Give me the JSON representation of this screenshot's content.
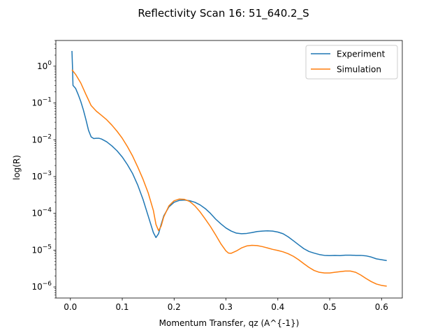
{
  "chart_data": {
    "type": "line",
    "title": "Reflectivity Scan 16: 51_640.2_S",
    "xlabel": "Momentum Transfer, qz (A^{-1})",
    "ylabel": "log(R)",
    "y_scale": "log",
    "xlim": [
      -0.028,
      0.64
    ],
    "ylim": [
      5e-07,
      5
    ],
    "xticks": [
      0.0,
      0.1,
      0.2,
      0.3,
      0.4,
      0.5,
      0.6
    ],
    "xtick_labels": [
      "0.0",
      "0.1",
      "0.2",
      "0.3",
      "0.4",
      "0.5",
      "0.6"
    ],
    "yticks": [
      1,
      0.1,
      0.01,
      0.001,
      0.0001,
      1e-05,
      1e-06
    ],
    "ytick_labels": [
      {
        "base": "10",
        "exp": "0"
      },
      {
        "base": "10",
        "exp": "−1"
      },
      {
        "base": "10",
        "exp": "−2"
      },
      {
        "base": "10",
        "exp": "−3"
      },
      {
        "base": "10",
        "exp": "−4"
      },
      {
        "base": "10",
        "exp": "−5"
      },
      {
        "base": "10",
        "exp": "−6"
      }
    ],
    "grid": false,
    "legend_position": "upper right",
    "series": [
      {
        "name": "Experiment",
        "color": "#1f77b4",
        "points": [
          [
            0.003,
            2.6
          ],
          [
            0.004,
            1.0
          ],
          [
            0.005,
            0.3
          ],
          [
            0.01,
            0.25
          ],
          [
            0.015,
            0.17
          ],
          [
            0.02,
            0.11
          ],
          [
            0.025,
            0.065
          ],
          [
            0.03,
            0.035
          ],
          [
            0.035,
            0.018
          ],
          [
            0.04,
            0.012
          ],
          [
            0.045,
            0.0108
          ],
          [
            0.05,
            0.011
          ],
          [
            0.055,
            0.011
          ],
          [
            0.06,
            0.0105
          ],
          [
            0.07,
            0.0088
          ],
          [
            0.08,
            0.0068
          ],
          [
            0.09,
            0.005
          ],
          [
            0.1,
            0.0034
          ],
          [
            0.11,
            0.0021
          ],
          [
            0.12,
            0.0012
          ],
          [
            0.13,
            0.00058
          ],
          [
            0.14,
            0.00024
          ],
          [
            0.15,
            8.5e-05
          ],
          [
            0.16,
            3e-05
          ],
          [
            0.165,
            2.2e-05
          ],
          [
            0.17,
            2.8e-05
          ],
          [
            0.175,
            5e-05
          ],
          [
            0.18,
            8.5e-05
          ],
          [
            0.19,
            0.00015
          ],
          [
            0.2,
            0.0002
          ],
          [
            0.21,
            0.000225
          ],
          [
            0.22,
            0.00023
          ],
          [
            0.23,
            0.00022
          ],
          [
            0.24,
            0.0002
          ],
          [
            0.25,
            0.00017
          ],
          [
            0.26,
            0.000135
          ],
          [
            0.27,
            0.0001
          ],
          [
            0.28,
            7e-05
          ],
          [
            0.29,
            5.2e-05
          ],
          [
            0.3,
            4e-05
          ],
          [
            0.31,
            3.3e-05
          ],
          [
            0.32,
            2.9e-05
          ],
          [
            0.33,
            2.8e-05
          ],
          [
            0.34,
            2.85e-05
          ],
          [
            0.35,
            3e-05
          ],
          [
            0.36,
            3.2e-05
          ],
          [
            0.37,
            3.3e-05
          ],
          [
            0.38,
            3.35e-05
          ],
          [
            0.39,
            3.3e-05
          ],
          [
            0.4,
            3.1e-05
          ],
          [
            0.41,
            2.8e-05
          ],
          [
            0.42,
            2.3e-05
          ],
          [
            0.43,
            1.8e-05
          ],
          [
            0.44,
            1.4e-05
          ],
          [
            0.45,
            1.1e-05
          ],
          [
            0.46,
            9.2e-06
          ],
          [
            0.47,
            8.3e-06
          ],
          [
            0.48,
            7.6e-06
          ],
          [
            0.49,
            7.2e-06
          ],
          [
            0.5,
            7.1e-06
          ],
          [
            0.51,
            7.2e-06
          ],
          [
            0.52,
            7.1e-06
          ],
          [
            0.53,
            7.3e-06
          ],
          [
            0.54,
            7.3e-06
          ],
          [
            0.55,
            7.2e-06
          ],
          [
            0.56,
            7.2e-06
          ],
          [
            0.57,
            7e-06
          ],
          [
            0.58,
            6.5e-06
          ],
          [
            0.59,
            5.8e-06
          ],
          [
            0.6,
            5.5e-06
          ],
          [
            0.61,
            5.2e-06
          ]
        ]
      },
      {
        "name": "Simulation",
        "color": "#ff7f0e",
        "points": [
          [
            0.003,
            0.8
          ],
          [
            0.01,
            0.6
          ],
          [
            0.02,
            0.35
          ],
          [
            0.03,
            0.17
          ],
          [
            0.04,
            0.085
          ],
          [
            0.05,
            0.06
          ],
          [
            0.06,
            0.046
          ],
          [
            0.07,
            0.035
          ],
          [
            0.08,
            0.025
          ],
          [
            0.09,
            0.017
          ],
          [
            0.1,
            0.011
          ],
          [
            0.11,
            0.0065
          ],
          [
            0.12,
            0.0036
          ],
          [
            0.13,
            0.0018
          ],
          [
            0.14,
            0.00085
          ],
          [
            0.15,
            0.00036
          ],
          [
            0.16,
            0.00012
          ],
          [
            0.165,
            5e-05
          ],
          [
            0.17,
            3.4e-05
          ],
          [
            0.175,
            4.5e-05
          ],
          [
            0.18,
            8e-05
          ],
          [
            0.19,
            0.00016
          ],
          [
            0.2,
            0.00022
          ],
          [
            0.21,
            0.000245
          ],
          [
            0.22,
            0.00024
          ],
          [
            0.23,
            0.00021
          ],
          [
            0.24,
            0.00016
          ],
          [
            0.25,
            0.00011
          ],
          [
            0.26,
            7e-05
          ],
          [
            0.27,
            4.4e-05
          ],
          [
            0.28,
            2.6e-05
          ],
          [
            0.29,
            1.5e-05
          ],
          [
            0.3,
            9.5e-06
          ],
          [
            0.305,
            8.3e-06
          ],
          [
            0.31,
            8.2e-06
          ],
          [
            0.32,
            9.5e-06
          ],
          [
            0.33,
            1.15e-05
          ],
          [
            0.34,
            1.3e-05
          ],
          [
            0.35,
            1.35e-05
          ],
          [
            0.36,
            1.33e-05
          ],
          [
            0.37,
            1.25e-05
          ],
          [
            0.38,
            1.15e-05
          ],
          [
            0.39,
            1.05e-05
          ],
          [
            0.4,
            9.8e-06
          ],
          [
            0.41,
            9e-06
          ],
          [
            0.42,
            8e-06
          ],
          [
            0.43,
            6.8e-06
          ],
          [
            0.44,
            5.5e-06
          ],
          [
            0.45,
            4.3e-06
          ],
          [
            0.46,
            3.4e-06
          ],
          [
            0.47,
            2.8e-06
          ],
          [
            0.48,
            2.5e-06
          ],
          [
            0.49,
            2.4e-06
          ],
          [
            0.5,
            2.4e-06
          ],
          [
            0.51,
            2.5e-06
          ],
          [
            0.52,
            2.6e-06
          ],
          [
            0.53,
            2.7e-06
          ],
          [
            0.54,
            2.7e-06
          ],
          [
            0.55,
            2.5e-06
          ],
          [
            0.56,
            2.1e-06
          ],
          [
            0.57,
            1.7e-06
          ],
          [
            0.58,
            1.4e-06
          ],
          [
            0.59,
            1.2e-06
          ],
          [
            0.6,
            1.1e-06
          ],
          [
            0.61,
            1.05e-06
          ]
        ]
      }
    ]
  }
}
